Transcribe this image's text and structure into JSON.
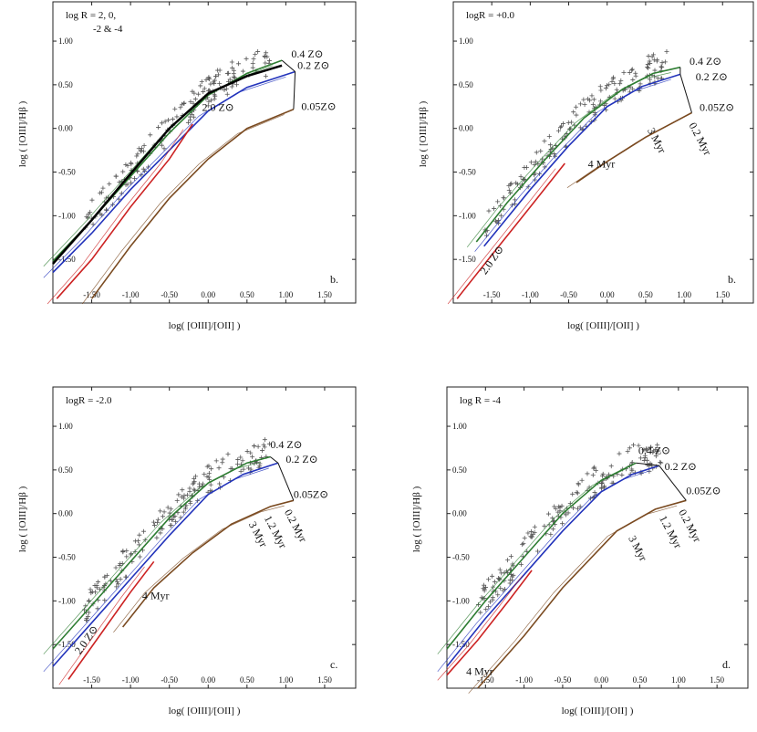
{
  "chart_data": [
    {
      "type": "scatter+line",
      "panel_text": [
        "log R = 2, 0,",
        "-2  & -4"
      ],
      "panel_letter": "b.",
      "xlabel": "log( [OIII]/[OII] )",
      "ylabel": "log ( [OIII]/Hβ )",
      "xlim": [
        -2.0,
        1.9
      ],
      "ylim": [
        -2.0,
        1.45
      ],
      "xticks": [
        "-1.50",
        "-1.00",
        "-0.50",
        "0.00",
        "0.50",
        "1.00",
        "1.50"
      ],
      "yticks": [
        "-1.50",
        "-1.00",
        "-0.50",
        "0.00",
        "0.50",
        "1.00"
      ],
      "series": [
        {
          "name": "0.4 Zsun",
          "color": "#2e7d32",
          "x": [
            -2.0,
            -1.5,
            -1.0,
            -0.5,
            0.0,
            0.5,
            0.95
          ],
          "y": [
            -1.52,
            -1.05,
            -0.55,
            -0.05,
            0.38,
            0.63,
            0.78
          ]
        },
        {
          "name": "0.2 Zsun",
          "color": "#2233bb",
          "x": [
            -2.0,
            -1.5,
            -1.0,
            -0.5,
            0.0,
            0.5,
            1.12
          ],
          "y": [
            -1.65,
            -1.2,
            -0.7,
            -0.25,
            0.2,
            0.47,
            0.65
          ]
        },
        {
          "name": "2.0 Zsun",
          "color": "#cc2222",
          "x": [
            -1.95,
            -1.5,
            -1.0,
            -0.5,
            -0.2
          ],
          "y": [
            -1.95,
            -1.5,
            -0.9,
            -0.35,
            0.05
          ]
        },
        {
          "name": "0.05 Zsun",
          "color": "#7a4a20",
          "x": [
            -1.5,
            -1.0,
            -0.5,
            0.0,
            0.5,
            1.1
          ],
          "y": [
            -1.95,
            -1.35,
            -0.8,
            -0.35,
            0.0,
            0.22
          ]
        },
        {
          "name": "log R = 2",
          "color": "#000000",
          "x": [
            -2.0,
            -1.5,
            -1.0,
            -0.5,
            0.0,
            0.5,
            0.95
          ],
          "y": [
            -1.55,
            -1.05,
            -0.52,
            0.0,
            0.4,
            0.6,
            0.72
          ]
        }
      ],
      "labels": [
        {
          "text": "0.4 Z⊙",
          "x": 1.07,
          "y": 0.81
        },
        {
          "text": "0.2 Z⊙",
          "x": 1.15,
          "y": 0.68
        },
        {
          "text": "2.0 Z⊙",
          "x": -0.08,
          "y": 0.2
        },
        {
          "text": "0.05Z⊙",
          "x": 1.2,
          "y": 0.21
        }
      ],
      "scatter_description": "observed galaxies (plus markers)"
    },
    {
      "type": "scatter+line",
      "panel_text": [
        "logR = +0.0"
      ],
      "panel_letter": "b.",
      "xlabel": "log( [OIII]/[OII] )",
      "ylabel": "log ( [OIII]/Hβ )",
      "xlim": [
        -2.0,
        1.9
      ],
      "ylim": [
        -2.0,
        1.45
      ],
      "xticks": [
        "-1.50",
        "-1.00",
        "-0.50",
        "0.00",
        "0.50",
        "1.00",
        "1.50"
      ],
      "yticks": [
        "-1.50",
        "-1.00",
        "-0.50",
        "0.00",
        "0.50",
        "1.00"
      ],
      "series": [
        {
          "name": "0.4 Zsun",
          "color": "#2e7d32",
          "x": [
            -1.7,
            -1.3,
            -0.8,
            -0.3,
            0.2,
            0.6,
            0.95
          ],
          "y": [
            -1.3,
            -0.85,
            -0.35,
            0.12,
            0.45,
            0.63,
            0.7
          ]
        },
        {
          "name": "0.2 Zsun",
          "color": "#2233bb",
          "x": [
            -1.6,
            -1.0,
            -0.5,
            0.0,
            0.45,
            0.95
          ],
          "y": [
            -1.35,
            -0.7,
            -0.2,
            0.25,
            0.48,
            0.62
          ]
        },
        {
          "name": "2.0 Zsun",
          "color": "#cc2222",
          "x": [
            -1.95,
            -1.5,
            -1.0,
            -0.55
          ],
          "y": [
            -1.95,
            -1.45,
            -0.9,
            -0.4
          ]
        },
        {
          "name": "0.05 Zsun",
          "color": "#7a4a20",
          "x": [
            -0.4,
            0.0,
            0.5,
            1.1
          ],
          "y": [
            -0.62,
            -0.38,
            -0.1,
            0.18
          ]
        }
      ],
      "labels": [
        {
          "text": "0.4 Z⊙",
          "x": 1.07,
          "y": 0.73
        },
        {
          "text": "0.2 Z⊙",
          "x": 1.15,
          "y": 0.55
        },
        {
          "text": "0.05Z⊙",
          "x": 1.2,
          "y": 0.2
        },
        {
          "text": "2.0 Z⊙",
          "x": -1.58,
          "y": -1.68
        },
        {
          "text": "0.2 Myr",
          "x": 1.06,
          "y": 0.04
        },
        {
          "text": "3 Myr",
          "x": 0.52,
          "y": -0.02
        },
        {
          "text": "4 Myr",
          "x": -0.25,
          "y": -0.45
        }
      ],
      "scatter_description": "observed galaxies (plus markers)"
    },
    {
      "type": "scatter+line",
      "panel_text": [
        "logR = -2.0"
      ],
      "panel_letter": "c.",
      "xlabel": "log( [OIII]/[OII] )",
      "ylabel": "log ( [OIII]/Hβ )",
      "xlim": [
        -2.0,
        1.9
      ],
      "ylim": [
        -2.0,
        1.45
      ],
      "xticks": [
        "-1.50",
        "-1.00",
        "-0.50",
        "0.00",
        "0.50",
        "1.00",
        "1.50"
      ],
      "yticks": [
        "-1.50",
        "-1.00",
        "-0.50",
        "0.00",
        "0.50",
        "1.00"
      ],
      "series": [
        {
          "name": "0.4 Zsun",
          "color": "#2e7d32",
          "x": [
            -2.0,
            -1.5,
            -1.0,
            -0.5,
            0.0,
            0.5,
            0.8
          ],
          "y": [
            -1.55,
            -1.05,
            -0.55,
            -0.05,
            0.35,
            0.58,
            0.65
          ]
        },
        {
          "name": "0.2 Zsun",
          "color": "#2233bb",
          "x": [
            -2.0,
            -1.5,
            -1.0,
            -0.5,
            0.0,
            0.45,
            0.9
          ],
          "y": [
            -1.75,
            -1.25,
            -0.75,
            -0.25,
            0.22,
            0.45,
            0.58
          ]
        },
        {
          "name": "2.0 Zsun",
          "color": "#cc2222",
          "x": [
            -1.8,
            -1.4,
            -1.0,
            -0.7
          ],
          "y": [
            -1.9,
            -1.4,
            -0.9,
            -0.55
          ]
        },
        {
          "name": "0.05 Zsun",
          "color": "#7a4a20",
          "x": [
            -1.1,
            -0.7,
            -0.2,
            0.3,
            0.8,
            1.1
          ],
          "y": [
            -1.3,
            -0.85,
            -0.45,
            -0.12,
            0.08,
            0.15
          ]
        }
      ],
      "labels": [
        {
          "text": "0.4 Z⊙",
          "x": 0.8,
          "y": 0.75
        },
        {
          "text": "0.2 Z⊙",
          "x": 1.0,
          "y": 0.58
        },
        {
          "text": "0.05Z⊙",
          "x": 1.1,
          "y": 0.18
        },
        {
          "text": "2.0 Z⊙",
          "x": -1.65,
          "y": -1.62
        },
        {
          "text": "0.2 Myr",
          "x": 0.98,
          "y": 0.02
        },
        {
          "text": "1.2 Myr",
          "x": 0.72,
          "y": -0.05
        },
        {
          "text": "3 Myr",
          "x": 0.52,
          "y": -0.12
        },
        {
          "text": "4 Myr",
          "x": -0.85,
          "y": -0.98
        }
      ],
      "scatter_description": "observed galaxies (plus markers)"
    },
    {
      "type": "scatter+line",
      "panel_text": [
        "log R = -4"
      ],
      "panel_letter": "d.",
      "xlabel": "log( [OIII]/[OII] )",
      "ylabel": "log ( [OIII]/Hβ )",
      "xlim": [
        -2.0,
        1.9
      ],
      "ylim": [
        -2.0,
        1.45
      ],
      "xticks": [
        "-1.50",
        "-1.00",
        "-0.50",
        "0.00",
        "0.50",
        "1.00",
        "1.50"
      ],
      "yticks": [
        "-1.50",
        "-1.00",
        "-0.50",
        "0.00",
        "0.50",
        "1.00"
      ],
      "series": [
        {
          "name": "0.4 Zsun",
          "color": "#2e7d32",
          "x": [
            -2.0,
            -1.5,
            -1.0,
            -0.5,
            0.0,
            0.45
          ],
          "y": [
            -1.55,
            -1.0,
            -0.5,
            0.0,
            0.38,
            0.58
          ]
        },
        {
          "name": "0.2 Zsun",
          "color": "#2233bb",
          "x": [
            -2.0,
            -1.5,
            -1.0,
            -0.5,
            0.0,
            0.4,
            0.75
          ],
          "y": [
            -1.75,
            -1.2,
            -0.7,
            -0.2,
            0.25,
            0.45,
            0.55
          ]
        },
        {
          "name": "2.0 Zsun",
          "color": "#cc2222",
          "x": [
            -2.0,
            -1.6,
            -1.2,
            -0.9
          ],
          "y": [
            -1.85,
            -1.45,
            -1.0,
            -0.65
          ]
        },
        {
          "name": "0.05 Zsun",
          "color": "#7a4a20",
          "x": [
            -1.6,
            -1.0,
            -0.5,
            0.2,
            0.7,
            1.1
          ],
          "y": [
            -2.0,
            -1.4,
            -0.85,
            -0.2,
            0.05,
            0.15
          ]
        }
      ],
      "labels": [
        {
          "text": "0.4 Z⊙",
          "x": 0.48,
          "y": 0.68
        },
        {
          "text": "0.2 Z⊙",
          "x": 0.82,
          "y": 0.5
        },
        {
          "text": "0.05Z⊙",
          "x": 1.1,
          "y": 0.22
        },
        {
          "text": "1.2 Myr",
          "x": 0.75,
          "y": -0.05
        },
        {
          "text": "0.2 Myr",
          "x": 1.0,
          "y": 0.02
        },
        {
          "text": "3 Myr",
          "x": 0.35,
          "y": -0.28
        },
        {
          "text": "4 Myr",
          "x": -1.75,
          "y": -1.85
        }
      ],
      "scatter_description": "observed galaxies (plus markers)"
    }
  ]
}
